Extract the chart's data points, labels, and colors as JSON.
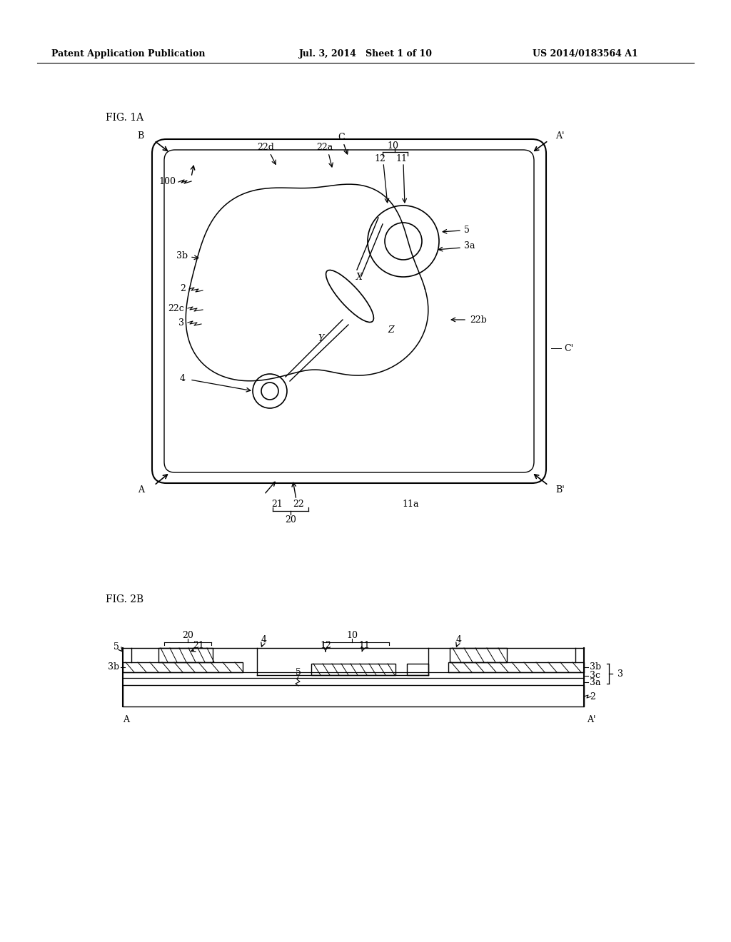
{
  "bg_color": "#ffffff",
  "header_left": "Patent Application Publication",
  "header_mid": "Jul. 3, 2014   Sheet 1 of 10",
  "header_right": "US 2014/0183564 A1",
  "fig1a_label": "FIG. 1A",
  "fig2b_label": "FIG. 2B",
  "line_color": "#000000",
  "text_color": "#000000"
}
